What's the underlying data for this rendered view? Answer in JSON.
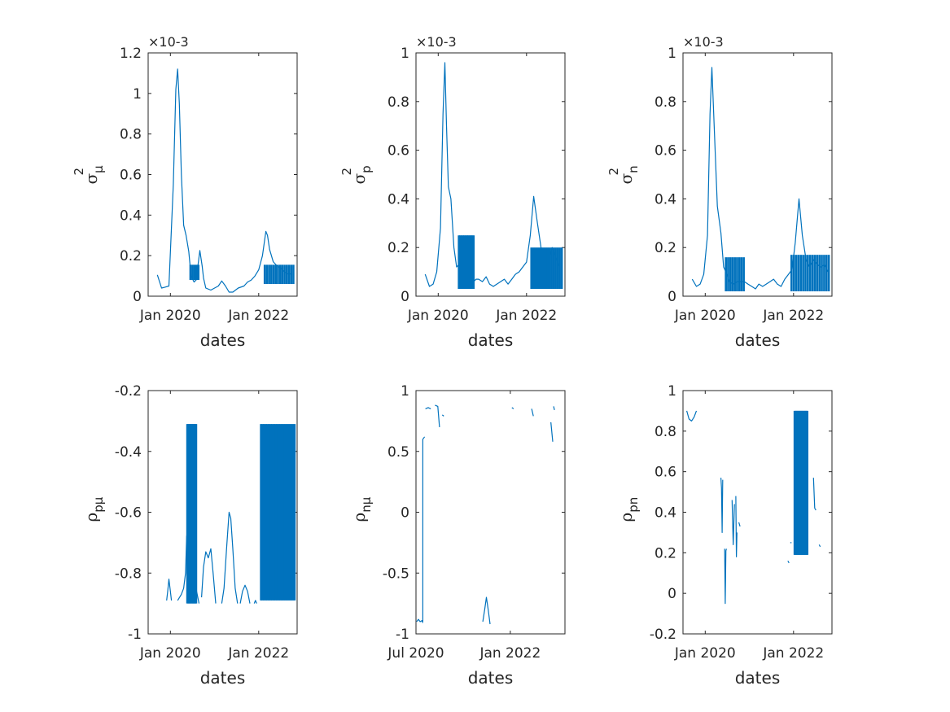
{
  "colors": {
    "series": "#0072bd",
    "axis": "#262626",
    "background": "#ffffff"
  },
  "chart_data": [
    {
      "type": "line",
      "xlabel": "dates",
      "ylabel": {
        "main": "σ",
        "sub": "μ",
        "sup": "2"
      },
      "exponent": "×10-3",
      "ylim": [
        0,
        0.0012
      ],
      "yticks": [
        "0",
        "0.2",
        "0.4",
        "0.6",
        "0.8",
        "1",
        "1.2"
      ],
      "ytick_values": [
        0,
        0.0002,
        0.0004,
        0.0006,
        0.0008,
        0.001,
        0.0012
      ],
      "xlim": [
        "2019-07-01",
        "2022-11-15"
      ],
      "xticks": [
        "Jan 2020",
        "Jan 2022"
      ],
      "xtick_values": [
        "2020-01-01",
        "2022-01-01"
      ],
      "spikes": [
        {
          "x": [
            "2020-06-15",
            "2020-08-20"
          ],
          "low": 8e-05,
          "high": 0.000155,
          "count": 5
        },
        {
          "x": [
            "2022-02-20",
            "2022-10-15"
          ],
          "low": 6e-05,
          "high": 0.000155,
          "count": 14
        }
      ],
      "series": [
        {
          "x": [
            "2019-09-15",
            "2019-10-20",
            "2019-11-20",
            "2019-12-20",
            "2020-01-25",
            "2020-02-15",
            "2020-03-01",
            "2020-03-15",
            "2020-04-01",
            "2020-04-20",
            "2020-05-10",
            "2020-06-01",
            "2020-06-20",
            "2020-07-15",
            "2020-08-01",
            "2020-09-01",
            "2020-09-20",
            "2020-10-01",
            "2020-10-20",
            "2020-12-01",
            "2021-01-01",
            "2021-02-01",
            "2021-03-01",
            "2021-04-01",
            "2021-05-01",
            "2021-06-01",
            "2021-07-15",
            "2021-09-01",
            "2021-10-01",
            "2021-11-01",
            "2021-12-01",
            "2022-01-01",
            "2022-02-01",
            "2022-03-01",
            "2022-03-15",
            "2022-04-01",
            "2022-05-01",
            "2022-06-01",
            "2022-07-01",
            "2022-08-01",
            "2022-09-01",
            "2022-10-01"
          ],
          "values": [
            0.000105,
            4e-05,
            4.5e-05,
            5e-05,
            0.00055,
            0.00102,
            0.00112,
            0.00095,
            0.0006,
            0.00035,
            0.0003,
            0.00022,
            0.0001,
            7e-05,
            8e-05,
            0.000225,
            0.00015,
            9e-05,
            4e-05,
            3e-05,
            4e-05,
            5e-05,
            7.5e-05,
            5e-05,
            2e-05,
            2e-05,
            4e-05,
            5e-05,
            7e-05,
            8e-05,
            0.0001,
            0.00013,
            0.0002,
            0.00032,
            0.0003,
            0.00023,
            0.00017,
            0.00015,
            0.00014,
            0.00012,
            0.00011,
            0.00011
          ]
        }
      ]
    },
    {
      "type": "line",
      "xlabel": "dates",
      "ylabel": {
        "main": "σ",
        "sub": "p",
        "sup": "2"
      },
      "exponent": "×10-3",
      "ylim": [
        0,
        0.001
      ],
      "yticks": [
        "0",
        "0.2",
        "0.4",
        "0.6",
        "0.8",
        "1"
      ],
      "ytick_values": [
        0,
        0.0002,
        0.0004,
        0.0006,
        0.0008,
        0.001
      ],
      "xlim": [
        "2019-07-01",
        "2022-11-15"
      ],
      "xticks": [
        "Jan 2020",
        "Jan 2022"
      ],
      "xtick_values": [
        "2020-01-01",
        "2022-01-01"
      ],
      "spikes": [
        {
          "x": [
            "2020-06-20",
            "2020-10-20"
          ],
          "low": 3e-05,
          "high": 0.00025,
          "count": 12
        },
        {
          "x": [
            "2022-02-10",
            "2022-10-20"
          ],
          "low": 3e-05,
          "high": 0.0002,
          "count": 16
        }
      ],
      "series": [
        {
          "x": [
            "2019-09-15",
            "2019-10-20",
            "2019-11-20",
            "2019-12-20",
            "2020-01-20",
            "2020-02-10",
            "2020-02-25",
            "2020-03-10",
            "2020-03-25",
            "2020-04-15",
            "2020-05-10",
            "2020-06-01",
            "2020-06-20",
            "2020-07-20",
            "2020-08-20",
            "2020-09-15",
            "2020-10-20",
            "2020-11-10",
            "2020-12-01",
            "2021-01-01",
            "2021-02-01",
            "2021-03-01",
            "2021-04-01",
            "2021-05-01",
            "2021-06-01",
            "2021-07-01",
            "2021-08-01",
            "2021-09-01",
            "2021-10-01",
            "2021-11-01",
            "2021-12-01",
            "2022-01-01",
            "2022-02-01",
            "2022-03-01",
            "2022-04-01",
            "2022-05-01",
            "2022-06-01",
            "2022-07-01",
            "2022-08-01",
            "2022-09-01",
            "2022-10-01"
          ],
          "values": [
            9e-05,
            4e-05,
            5e-05,
            0.0001,
            0.00028,
            0.00075,
            0.00096,
            0.0007,
            0.00045,
            0.0004,
            0.0002,
            0.00012,
            0.00013,
            0.0001,
            9e-05,
            5e-05,
            6e-05,
            7e-05,
            7e-05,
            6e-05,
            8e-05,
            5e-05,
            4e-05,
            5e-05,
            6e-05,
            7e-05,
            5e-05,
            7e-05,
            9e-05,
            0.0001,
            0.00012,
            0.00014,
            0.00025,
            0.00041,
            0.0003,
            0.0002,
            0.00015,
            0.00015,
            0.0002,
            0.00016,
            0.00012
          ]
        }
      ]
    },
    {
      "type": "line",
      "xlabel": "dates",
      "ylabel": {
        "main": "σ",
        "sub": "n",
        "sup": "2"
      },
      "exponent": "×10-3",
      "ylim": [
        0,
        0.001
      ],
      "yticks": [
        "0",
        "0.2",
        "0.4",
        "0.6",
        "0.8",
        "1"
      ],
      "ytick_values": [
        0,
        0.0002,
        0.0004,
        0.0006,
        0.0008,
        0.001
      ],
      "xlim": [
        "2019-07-01",
        "2022-11-15"
      ],
      "xticks": [
        "Jan 2020",
        "Jan 2022"
      ],
      "xtick_values": [
        "2020-01-01",
        "2022-01-01"
      ],
      "spikes": [
        {
          "x": [
            "2020-06-20",
            "2020-11-15"
          ],
          "low": 2e-05,
          "high": 0.00016,
          "count": 9
        },
        {
          "x": [
            "2021-12-15",
            "2022-10-20"
          ],
          "low": 2e-05,
          "high": 0.00017,
          "count": 17
        }
      ],
      "series": [
        {
          "x": [
            "2019-09-15",
            "2019-10-20",
            "2019-11-20",
            "2019-12-20",
            "2020-01-20",
            "2020-02-10",
            "2020-02-25",
            "2020-03-15",
            "2020-04-10",
            "2020-05-10",
            "2020-06-01",
            "2020-06-20",
            "2020-07-20",
            "2020-08-20",
            "2020-09-20",
            "2020-10-20",
            "2020-11-20",
            "2020-12-20",
            "2021-01-20",
            "2021-02-20",
            "2021-03-20",
            "2021-04-20",
            "2021-05-20",
            "2021-06-20",
            "2021-07-20",
            "2021-08-20",
            "2021-09-20",
            "2021-10-20",
            "2021-11-20",
            "2021-12-20",
            "2022-01-15",
            "2022-02-15",
            "2022-03-15",
            "2022-04-15",
            "2022-05-15",
            "2022-06-15",
            "2022-07-15",
            "2022-08-15",
            "2022-09-15",
            "2022-10-15"
          ],
          "values": [
            7e-05,
            4e-05,
            5e-05,
            9e-05,
            0.00025,
            0.00075,
            0.00094,
            0.0007,
            0.00037,
            0.00026,
            0.00012,
            0.0001,
            6e-05,
            5e-05,
            6e-05,
            6e-05,
            6e-05,
            5e-05,
            4e-05,
            3e-05,
            5e-05,
            4e-05,
            5e-05,
            6e-05,
            7e-05,
            5e-05,
            4e-05,
            7e-05,
            9e-05,
            0.00011,
            0.00022,
            0.0004,
            0.00025,
            0.00015,
            0.00012,
            0.00015,
            0.00013,
            0.00012,
            0.00013,
            0.0001
          ]
        }
      ]
    },
    {
      "type": "line",
      "xlabel": "dates",
      "ylabel": {
        "main": "ρ",
        "sub": "pμ",
        "sup": ""
      },
      "exponent": "",
      "ylim": [
        -1,
        -0.2
      ],
      "yticks": [
        "-1",
        "-0.8",
        "-0.6",
        "-0.4",
        "-0.2"
      ],
      "ytick_values": [
        -1,
        -0.8,
        -0.6,
        -0.4,
        -0.2
      ],
      "xlim": [
        "2019-07-01",
        "2022-11-15"
      ],
      "xticks": [
        "Jan 2020",
        "Jan 2022"
      ],
      "xtick_values": [
        "2020-01-01",
        "2022-01-01"
      ],
      "spikes": [
        {
          "x": [
            "2020-05-20",
            "2020-08-01"
          ],
          "low": -0.9,
          "high": -0.31,
          "count": 10
        },
        {
          "x": [
            "2022-01-20",
            "2022-10-25"
          ],
          "low": -0.89,
          "high": -0.31,
          "count": 22
        }
      ],
      "series": [
        {
          "x": [
            "2019-12-01",
            "2019-12-10",
            "2019-12-20",
            "2020-01-01",
            "2020-01-10"
          ],
          "values": [
            -0.89,
            -0.86,
            -0.82,
            -0.86,
            -0.89
          ]
        },
        {
          "x": [
            "2020-03-01",
            "2020-04-01",
            "2020-04-20",
            "2020-05-05",
            "2020-05-15",
            "2020-05-25",
            "2020-06-05",
            "2020-06-25",
            "2020-07-15",
            "2020-08-05",
            "2020-08-25"
          ],
          "values": [
            -0.89,
            -0.87,
            -0.85,
            -0.8,
            -0.68,
            -0.65,
            -0.78,
            -0.85,
            -0.87,
            -0.86,
            -0.9
          ]
        },
        {
          "x": [
            "2020-09-15",
            "2020-10-01",
            "2020-10-20",
            "2020-11-10",
            "2020-12-01",
            "2020-12-20",
            "2021-01-10"
          ],
          "values": [
            -0.88,
            -0.78,
            -0.73,
            -0.75,
            -0.72,
            -0.8,
            -0.9
          ]
        },
        {
          "x": [
            "2021-03-01",
            "2021-03-20",
            "2021-04-10",
            "2021-05-01",
            "2021-05-15",
            "2021-06-01",
            "2021-06-20",
            "2021-07-10"
          ],
          "values": [
            -0.9,
            -0.85,
            -0.72,
            -0.6,
            -0.62,
            -0.72,
            -0.85,
            -0.9
          ]
        },
        {
          "x": [
            "2021-08-01",
            "2021-08-20",
            "2021-09-10",
            "2021-10-01",
            "2021-10-20"
          ],
          "values": [
            -0.9,
            -0.86,
            -0.84,
            -0.86,
            -0.9
          ]
        },
        {
          "x": [
            "2021-11-25",
            "2021-12-05",
            "2021-12-15"
          ],
          "values": [
            -0.9,
            -0.89,
            -0.9
          ]
        },
        {
          "x": [
            "2022-02-01",
            "2022-03-15",
            "2022-04-20",
            "2022-05-20",
            "2022-06-20",
            "2022-07-20",
            "2022-08-20",
            "2022-09-20",
            "2022-10-20"
          ],
          "values": [
            -0.88,
            -0.78,
            -0.7,
            -0.66,
            -0.7,
            -0.8,
            -0.85,
            -0.84,
            -0.87
          ]
        }
      ]
    },
    {
      "type": "line",
      "xlabel": "dates",
      "ylabel": {
        "main": "ρ",
        "sub": "nμ",
        "sup": ""
      },
      "exponent": "",
      "ylim": [
        -1,
        1
      ],
      "yticks": [
        "-1",
        "-0.5",
        "0",
        "0.5",
        "1"
      ],
      "ytick_values": [
        -1,
        -0.5,
        0,
        0.5,
        1
      ],
      "xlim": [
        "2020-07-01",
        "2022-11-15"
      ],
      "xticks": [
        "Jul 2020",
        "Jan 2022"
      ],
      "xtick_values": [
        "2020-07-01",
        "2022-01-01"
      ],
      "spikes": [],
      "series": [
        {
          "x": [
            "2020-07-05",
            "2020-07-15",
            "2020-07-25",
            "2020-08-05",
            "2020-08-10"
          ],
          "values": [
            -0.9,
            -0.88,
            -0.9,
            -0.89,
            -0.91
          ]
        },
        {
          "x": [
            "2020-08-10",
            "2020-08-10",
            "2020-08-20"
          ],
          "values": [
            -0.9,
            0.6,
            0.62
          ]
        },
        {
          "x": [
            "2020-08-25",
            "2020-09-10",
            "2020-09-25"
          ],
          "values": [
            0.85,
            0.86,
            0.85
          ]
        },
        {
          "x": [
            "2020-10-20",
            "2020-11-05",
            "2020-11-15"
          ],
          "values": [
            0.88,
            0.87,
            0.7
          ]
        },
        {
          "x": [
            "2020-12-01",
            "2020-12-10"
          ],
          "values": [
            0.8,
            0.79
          ]
        },
        {
          "x": [
            "2021-07-25",
            "2021-08-05",
            "2021-08-15",
            "2021-08-25",
            "2021-09-05"
          ],
          "values": [
            -0.9,
            -0.8,
            -0.7,
            -0.8,
            -0.92
          ]
        },
        {
          "x": [
            "2022-01-10",
            "2022-01-20"
          ],
          "values": [
            0.86,
            0.85
          ]
        },
        {
          "x": [
            "2022-05-05",
            "2022-05-15"
          ],
          "values": [
            0.85,
            0.79
          ]
        },
        {
          "x": [
            "2022-08-25",
            "2022-09-05"
          ],
          "values": [
            0.74,
            0.58
          ]
        },
        {
          "x": [
            "2022-09-10",
            "2022-09-15"
          ],
          "values": [
            0.87,
            0.84
          ]
        }
      ]
    },
    {
      "type": "line",
      "xlabel": "dates",
      "ylabel": {
        "main": "ρ",
        "sub": "pn",
        "sup": ""
      },
      "exponent": "",
      "ylim": [
        -0.2,
        1
      ],
      "yticks": [
        "-0.2",
        "0",
        "0.2",
        "0.4",
        "0.6",
        "0.8",
        "1"
      ],
      "ytick_values": [
        -0.2,
        0,
        0.2,
        0.4,
        0.6,
        0.8,
        1
      ],
      "xlim": [
        "2019-07-01",
        "2022-11-15"
      ],
      "xticks": [
        "Jan 2020",
        "Jan 2022"
      ],
      "xtick_values": [
        "2020-01-01",
        "2022-01-01"
      ],
      "spikes": [
        {
          "x": [
            "2022-01-10",
            "2022-04-25"
          ],
          "low": 0.19,
          "high": 0.9,
          "count": 14
        }
      ],
      "series": [
        {
          "x": [
            "2019-08-01",
            "2019-08-20",
            "2019-09-10",
            "2019-10-01",
            "2019-10-20"
          ],
          "values": [
            0.9,
            0.86,
            0.85,
            0.87,
            0.9
          ]
        },
        {
          "x": [
            "2020-05-10",
            "2020-05-15",
            "2020-05-20",
            "2020-05-25"
          ],
          "values": [
            0.57,
            0.52,
            0.3,
            0.56
          ]
        },
        {
          "x": [
            "2020-06-10",
            "2020-06-15",
            "2020-06-20",
            "2020-06-25"
          ],
          "values": [
            0.22,
            -0.05,
            0.21,
            0.22
          ]
        },
        {
          "x": [
            "2020-08-10",
            "2020-08-20",
            "2020-08-30"
          ],
          "values": [
            0.46,
            0.24,
            0.44
          ]
        },
        {
          "x": [
            "2020-09-10",
            "2020-09-15",
            "2020-09-20"
          ],
          "values": [
            0.48,
            0.18,
            0.3
          ]
        },
        {
          "x": [
            "2020-10-05",
            "2020-10-15"
          ],
          "values": [
            0.35,
            0.33
          ]
        },
        {
          "x": [
            "2021-11-15",
            "2021-11-25"
          ],
          "values": [
            0.16,
            0.15
          ]
        },
        {
          "x": [
            "2021-12-05",
            "2021-12-15"
          ],
          "values": [
            0.25,
            0.25
          ]
        },
        {
          "x": [
            "2022-06-15",
            "2022-06-25",
            "2022-07-05"
          ],
          "values": [
            0.57,
            0.42,
            0.41
          ]
        },
        {
          "x": [
            "2022-08-01",
            "2022-08-10"
          ],
          "values": [
            0.24,
            0.23
          ]
        }
      ]
    }
  ]
}
